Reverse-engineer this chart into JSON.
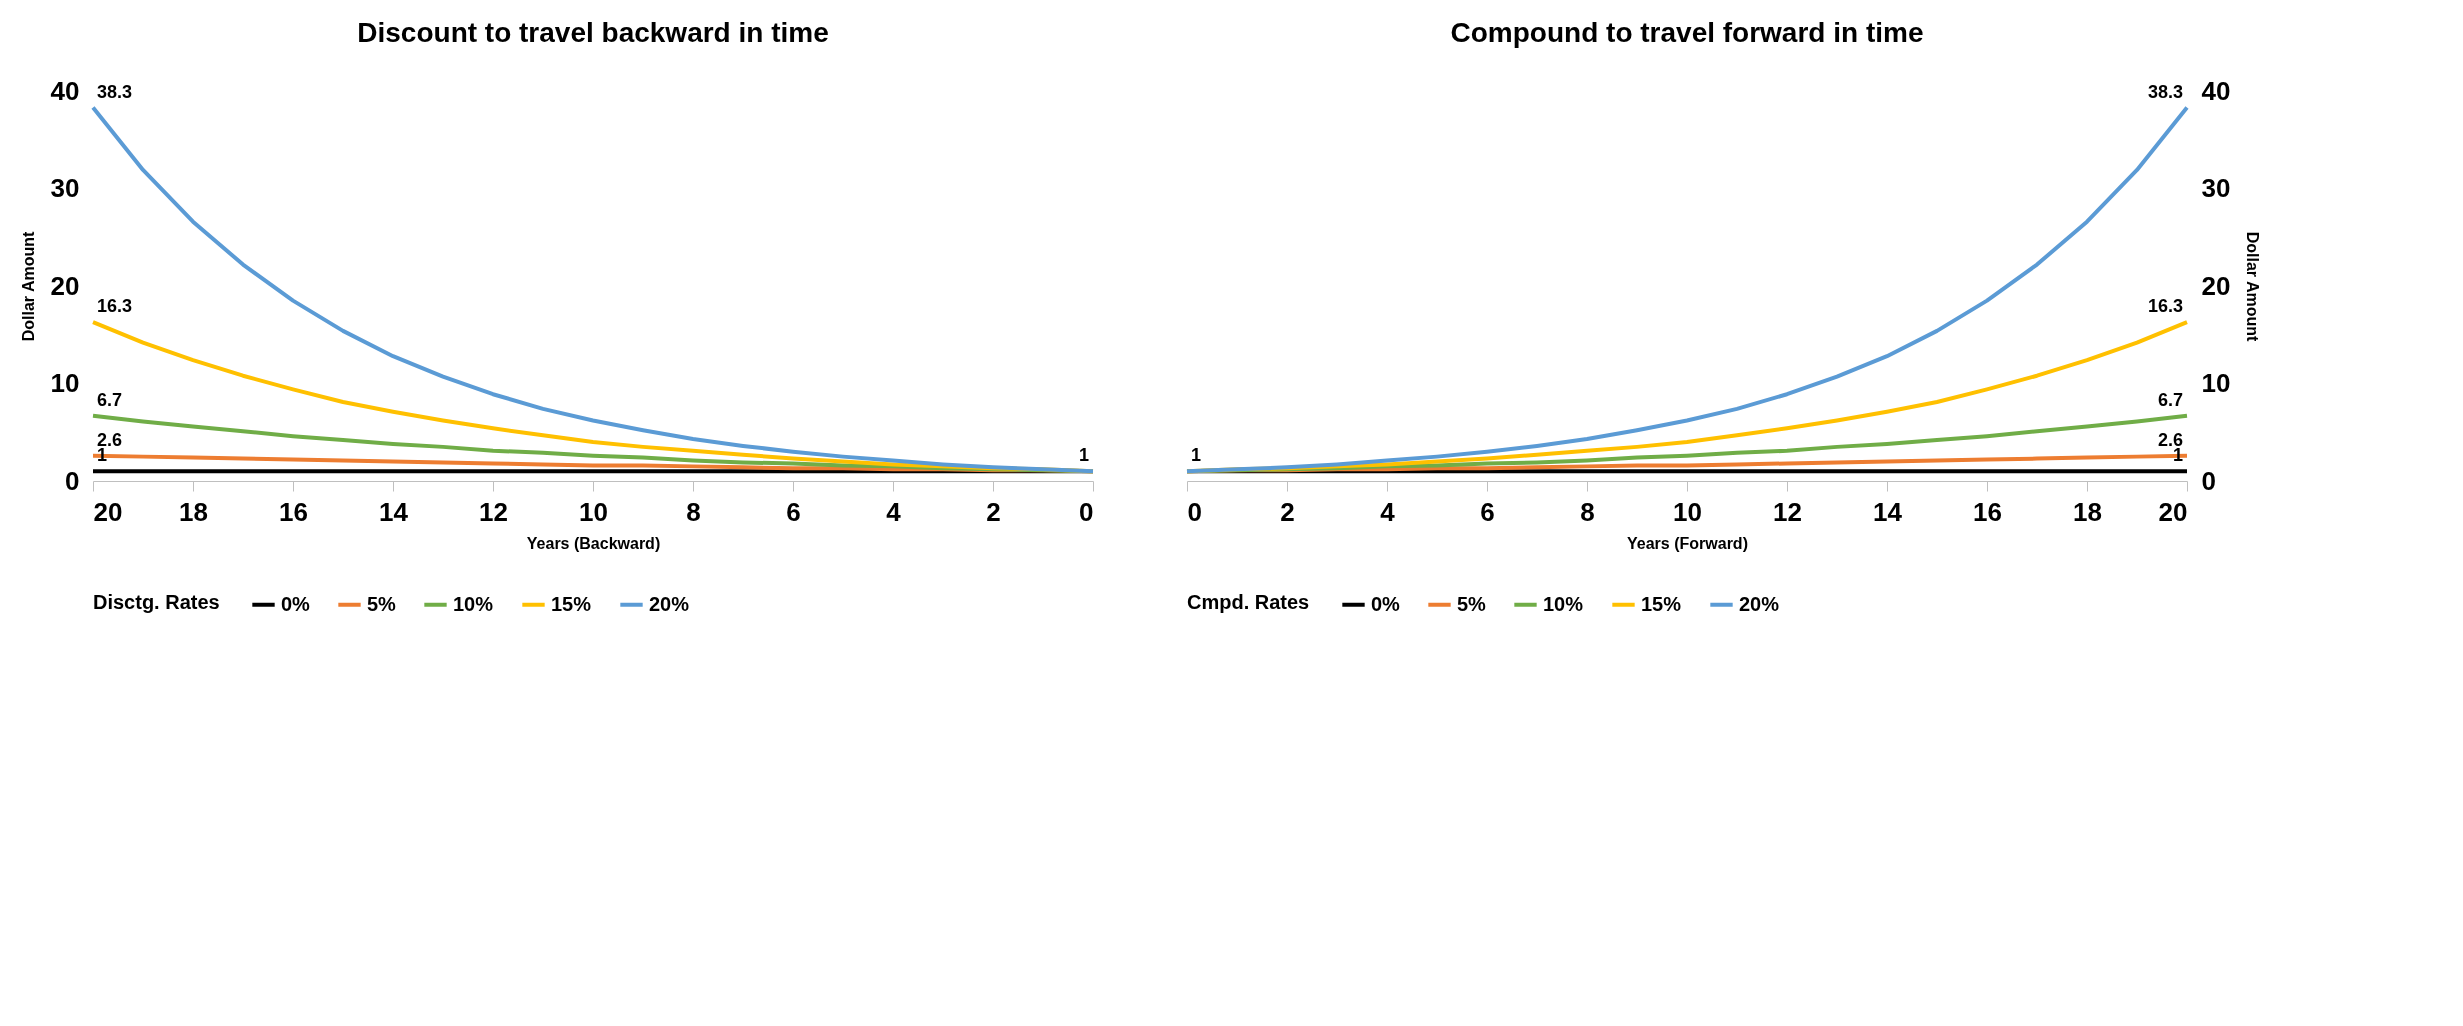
{
  "chart_data": [
    {
      "type": "line",
      "title": "Discount to travel backward in time",
      "xlabel": "Years (Backward)",
      "ylabel": "Dollar Amount",
      "legend_title": "Disctg. Rates",
      "legend": "bottom",
      "grid": false,
      "marker": "none",
      "line_style": "solid",
      "x": [
        0,
        1,
        2,
        3,
        4,
        5,
        6,
        7,
        8,
        9,
        10,
        11,
        12,
        13,
        14,
        15,
        16,
        17,
        18,
        19,
        20
      ],
      "xlim": [
        20,
        0
      ],
      "xticks": [
        20,
        18,
        16,
        14,
        12,
        10,
        8,
        6,
        4,
        2,
        0
      ],
      "ylim": [
        0,
        40
      ],
      "yticks": [
        0,
        10,
        20,
        30,
        40
      ],
      "series": [
        {
          "name": "0%",
          "color": "#000000",
          "values": [
            1,
            1,
            1,
            1,
            1,
            1,
            1,
            1,
            1,
            1,
            1,
            1,
            1,
            1,
            1,
            1,
            1,
            1,
            1,
            1,
            1
          ],
          "value_labels": [
            "1",
            null,
            null,
            null,
            null,
            null,
            null,
            null,
            null,
            null,
            null,
            null,
            null,
            null,
            null,
            null,
            null,
            null,
            null,
            null,
            "1"
          ]
        },
        {
          "name": "5%",
          "color": "#ed7d31",
          "values": [
            1,
            1.1,
            1.1,
            1.2,
            1.2,
            1.3,
            1.3,
            1.4,
            1.5,
            1.6,
            1.6,
            1.7,
            1.8,
            1.9,
            2,
            2.1,
            2.2,
            2.3,
            2.4,
            2.5,
            2.6
          ],
          "value_labels": [
            null,
            null,
            null,
            null,
            null,
            null,
            null,
            null,
            null,
            null,
            null,
            null,
            null,
            null,
            null,
            null,
            null,
            null,
            null,
            null,
            "2.6"
          ]
        },
        {
          "name": "10%",
          "color": "#70ad47",
          "values": [
            1,
            1.1,
            1.2,
            1.3,
            1.5,
            1.6,
            1.8,
            1.9,
            2.1,
            2.4,
            2.6,
            2.9,
            3.1,
            3.5,
            3.8,
            4.2,
            4.6,
            5.1,
            5.6,
            6.1,
            6.7
          ],
          "value_labels": [
            null,
            null,
            null,
            null,
            null,
            null,
            null,
            null,
            null,
            null,
            null,
            null,
            null,
            null,
            null,
            null,
            null,
            null,
            null,
            null,
            "6.7"
          ]
        },
        {
          "name": "15%",
          "color": "#ffc000",
          "values": [
            1,
            1.2,
            1.3,
            1.5,
            1.7,
            2,
            2.3,
            2.7,
            3.1,
            3.5,
            4,
            4.7,
            5.4,
            6.2,
            7.1,
            8.1,
            9.4,
            10.8,
            12.4,
            14.2,
            16.3
          ],
          "value_labels": [
            null,
            null,
            null,
            null,
            null,
            null,
            null,
            null,
            null,
            null,
            null,
            null,
            null,
            null,
            null,
            null,
            null,
            null,
            null,
            null,
            "16.3"
          ]
        },
        {
          "name": "20%",
          "color": "#5b9bd5",
          "values": [
            1,
            1.2,
            1.4,
            1.7,
            2.1,
            2.5,
            3,
            3.6,
            4.3,
            5.2,
            6.2,
            7.4,
            8.9,
            10.7,
            12.8,
            15.4,
            18.5,
            22.2,
            26.6,
            31.9,
            38.3
          ],
          "value_labels": [
            null,
            null,
            null,
            null,
            null,
            null,
            null,
            null,
            null,
            null,
            null,
            null,
            null,
            null,
            null,
            null,
            null,
            null,
            null,
            null,
            "38.3"
          ]
        }
      ]
    },
    {
      "type": "line",
      "title": "Compound to travel forward in time",
      "xlabel": "Years (Forward)",
      "y2label": "Dollar Amount",
      "legend_title": "Cmpd. Rates",
      "legend": "bottom",
      "grid": false,
      "marker": "none",
      "line_style": "solid",
      "x": [
        0,
        1,
        2,
        3,
        4,
        5,
        6,
        7,
        8,
        9,
        10,
        11,
        12,
        13,
        14,
        15,
        16,
        17,
        18,
        19,
        20
      ],
      "xlim": [
        0,
        20
      ],
      "xticks": [
        0,
        2,
        4,
        6,
        8,
        10,
        12,
        14,
        16,
        18,
        20
      ],
      "y2lim": [
        0,
        40
      ],
      "y2ticks": [
        0,
        10,
        20,
        30,
        40
      ],
      "series": [
        {
          "name": "0%",
          "color": "#000000",
          "axis": "y2",
          "values": [
            1,
            1,
            1,
            1,
            1,
            1,
            1,
            1,
            1,
            1,
            1,
            1,
            1,
            1,
            1,
            1,
            1,
            1,
            1,
            1,
            1
          ],
          "value_labels": [
            "1",
            null,
            null,
            null,
            null,
            null,
            null,
            null,
            null,
            null,
            null,
            null,
            null,
            null,
            null,
            null,
            null,
            null,
            null,
            null,
            "1"
          ]
        },
        {
          "name": "5%",
          "color": "#ed7d31",
          "axis": "y2",
          "values": [
            1,
            1.1,
            1.1,
            1.2,
            1.2,
            1.3,
            1.3,
            1.4,
            1.5,
            1.6,
            1.6,
            1.7,
            1.8,
            1.9,
            2,
            2.1,
            2.2,
            2.3,
            2.4,
            2.5,
            2.6
          ],
          "value_labels": [
            null,
            null,
            null,
            null,
            null,
            null,
            null,
            null,
            null,
            null,
            null,
            null,
            null,
            null,
            null,
            null,
            null,
            null,
            null,
            null,
            "2.6"
          ]
        },
        {
          "name": "10%",
          "color": "#70ad47",
          "axis": "y2",
          "values": [
            1,
            1.1,
            1.2,
            1.3,
            1.5,
            1.6,
            1.8,
            1.9,
            2.1,
            2.4,
            2.6,
            2.9,
            3.1,
            3.5,
            3.8,
            4.2,
            4.6,
            5.1,
            5.6,
            6.1,
            6.7
          ],
          "value_labels": [
            null,
            null,
            null,
            null,
            null,
            null,
            null,
            null,
            null,
            null,
            null,
            null,
            null,
            null,
            null,
            null,
            null,
            null,
            null,
            null,
            "6.7"
          ]
        },
        {
          "name": "15%",
          "color": "#ffc000",
          "axis": "y2",
          "values": [
            1,
            1.2,
            1.3,
            1.5,
            1.7,
            2,
            2.3,
            2.7,
            3.1,
            3.5,
            4,
            4.7,
            5.4,
            6.2,
            7.1,
            8.1,
            9.4,
            10.8,
            12.4,
            14.2,
            16.3
          ],
          "value_labels": [
            null,
            null,
            null,
            null,
            null,
            null,
            null,
            null,
            null,
            null,
            null,
            null,
            null,
            null,
            null,
            null,
            null,
            null,
            null,
            null,
            "16.3"
          ]
        },
        {
          "name": "20%",
          "color": "#5b9bd5",
          "axis": "y2",
          "values": [
            1,
            1.2,
            1.4,
            1.7,
            2.1,
            2.5,
            3,
            3.6,
            4.3,
            5.2,
            6.2,
            7.4,
            8.9,
            10.7,
            12.8,
            15.4,
            18.5,
            22.2,
            26.6,
            31.9,
            38.3
          ],
          "value_labels": [
            null,
            null,
            null,
            null,
            null,
            null,
            null,
            null,
            null,
            null,
            null,
            null,
            null,
            null,
            null,
            null,
            null,
            null,
            null,
            null,
            "38.3"
          ]
        }
      ]
    }
  ]
}
